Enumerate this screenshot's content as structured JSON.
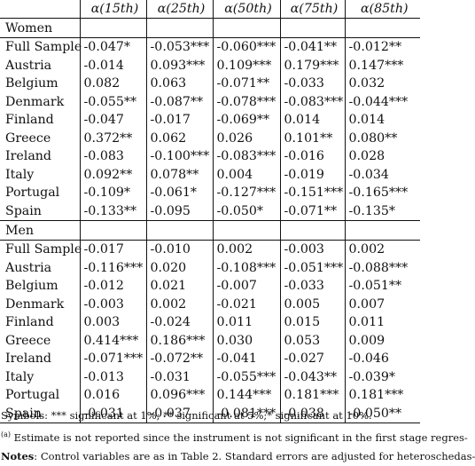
{
  "columns": [
    "α(15th)",
    "α(25th)",
    "α(50th)",
    "α(75th)",
    "α(85th)"
  ],
  "women": {
    "label": "Women",
    "rows": [
      {
        "country": "Full Sample",
        "v": [
          "-0.047*",
          "-0.053***",
          "-0.060***",
          "-0.041**",
          "-0.012**"
        ]
      },
      {
        "country": "Austria",
        "v": [
          "-0.014",
          "0.093***",
          "0.109***",
          "0.179***",
          "0.147***"
        ]
      },
      {
        "country": "Belgium",
        "v": [
          "0.082",
          "0.063",
          "-0.071**",
          "-0.033",
          "0.032"
        ]
      },
      {
        "country": "Denmark",
        "v": [
          "-0.055**",
          "-0.087**",
          "-0.078***",
          "-0.083***",
          "-0.044***"
        ]
      },
      {
        "country": "Finland",
        "v": [
          "-0.047",
          "-0.017",
          "-0.069**",
          "0.014",
          "0.014"
        ]
      },
      {
        "country": "Greece",
        "v": [
          "0.372**",
          "0.062",
          "0.026",
          "0.101**",
          "0.080**"
        ]
      },
      {
        "country": "Ireland",
        "v": [
          "-0.083",
          "-0.100***",
          "-0.083***",
          "-0.016",
          "0.028"
        ]
      },
      {
        "country": "Italy",
        "v": [
          "0.092**",
          "0.078**",
          "0.004",
          "-0.019",
          "-0.034"
        ]
      },
      {
        "country": "Portugal",
        "v": [
          "-0.109*",
          "-0.061*",
          "-0.127***",
          "-0.151***",
          "-0.165***"
        ]
      },
      {
        "country": "Spain",
        "v": [
          "-0.133**",
          "-0.095",
          "-0.050*",
          "-0.071**",
          "-0.135*"
        ]
      }
    ]
  },
  "men": {
    "label": "Men",
    "rows": [
      {
        "country": "Full Sample",
        "v": [
          "-0.017",
          "-0.010",
          "0.002",
          "-0.003",
          "0.002"
        ]
      },
      {
        "country": "Austria",
        "v": [
          "-0.116***",
          "0.020",
          "-0.108***",
          "-0.051***",
          "-0.088***"
        ]
      },
      {
        "country": "Belgium",
        "v": [
          "-0.012",
          "0.021",
          "-0.007",
          "-0.033",
          "-0.051**"
        ]
      },
      {
        "country": "Denmark",
        "v": [
          "-0.003",
          "0.002",
          "-0.021",
          "0.005",
          "0.007"
        ]
      },
      {
        "country": "Finland",
        "v": [
          "0.003",
          "-0.024",
          "0.011",
          "0.015",
          "0.011"
        ]
      },
      {
        "country": "Greece",
        "v": [
          "0.414***",
          "0.186***",
          "0.030",
          "0.053",
          "0.009"
        ]
      },
      {
        "country": "Ireland",
        "v": [
          "-0.071***",
          "-0.072**",
          "-0.041",
          "-0.027",
          "-0.046"
        ]
      },
      {
        "country": "Italy",
        "v": [
          "-0.013",
          "-0.031",
          "-0.055***",
          "-0.043**",
          "-0.039*"
        ]
      },
      {
        "country": "Portugal",
        "v": [
          "0.016",
          "0.096***",
          "0.144***",
          "0.181***",
          "0.181***"
        ]
      },
      {
        "country": "Spain",
        "v": [
          "-0.031",
          "-0.037",
          "-0.081***",
          "-0.038",
          "-0.050**"
        ]
      }
    ]
  },
  "notes": {
    "symbols": "Symbols: *** significant at 1%; ** significant at 5%;* significant at 10%.",
    "footnote_mark": "(a)",
    "footnote_text": " Estimate is not reported since the instrument is not significant in the first stage regres-",
    "notes_label": "Notes",
    "notes_text": ": Control variables are as in Table 2. Standard errors are adjusted for heteroschedas-"
  }
}
